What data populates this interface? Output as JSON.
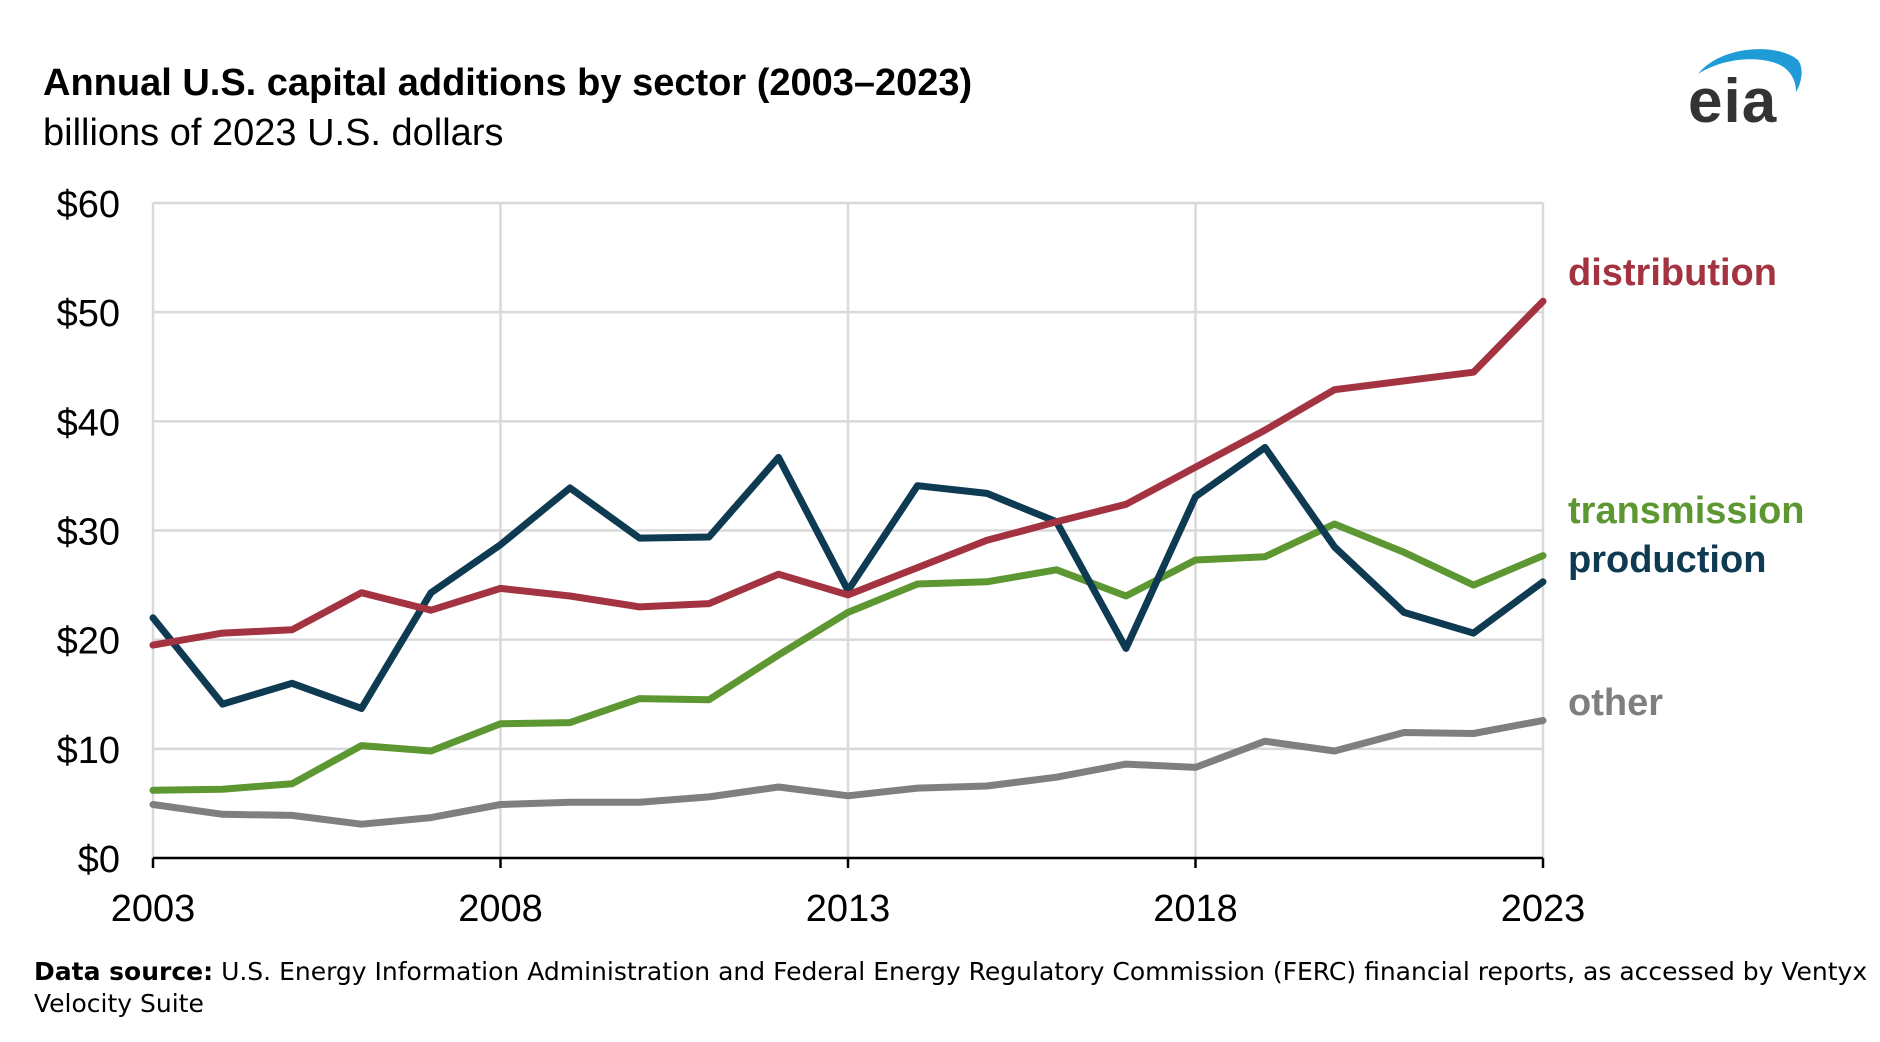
{
  "header": {
    "title": "Annual U.S. capital additions by sector (2003–2023)",
    "subtitle": "billions of 2023 U.S. dollars"
  },
  "logo": {
    "text": "eia",
    "arc_color": "#1f9bd7",
    "text_color": "#333333"
  },
  "footer": {
    "source_label": "Data source:",
    "source_text": "U.S. Energy Information Administration and Federal Energy Regulatory Commission (FERC) financial reports, as accessed by Ventyx Velocity Suite"
  },
  "chart_data": {
    "type": "line",
    "title": "Annual U.S. capital additions by sector (2003–2023)",
    "subtitle": "billions of 2023 U.S. dollars",
    "xlabel": "",
    "ylabel": "",
    "x": [
      2003,
      2004,
      2005,
      2006,
      2007,
      2008,
      2009,
      2010,
      2011,
      2012,
      2013,
      2014,
      2015,
      2016,
      2017,
      2018,
      2019,
      2020,
      2021,
      2022,
      2023
    ],
    "xlim": [
      2003,
      2023
    ],
    "ylim": [
      0,
      60
    ],
    "x_ticks": [
      "2003",
      "2008",
      "2013",
      "2018",
      "2023"
    ],
    "x_tick_values": [
      2003,
      2008,
      2013,
      2018,
      2023
    ],
    "y_ticks": [
      "$0",
      "$10",
      "$20",
      "$30",
      "$40",
      "$50",
      "$60"
    ],
    "y_tick_values": [
      0,
      10,
      20,
      30,
      40,
      50,
      60
    ],
    "grid": true,
    "legend": "direct labels at right end of lines",
    "series": [
      {
        "name": "other",
        "color": "#7f7f7f",
        "values": [
          4.9,
          4.0,
          3.9,
          3.1,
          3.7,
          4.9,
          5.1,
          5.1,
          5.6,
          6.5,
          5.7,
          6.4,
          6.6,
          7.4,
          8.6,
          8.3,
          10.7,
          9.8,
          11.5,
          11.4,
          12.6
        ]
      },
      {
        "name": "transmission",
        "color": "#5d9732",
        "values": [
          6.2,
          6.3,
          6.8,
          10.3,
          9.8,
          12.3,
          12.4,
          14.6,
          14.5,
          18.6,
          22.5,
          25.1,
          25.3,
          26.4,
          24.0,
          27.3,
          27.6,
          30.6,
          28.0,
          25.0,
          27.7
        ]
      },
      {
        "name": "production",
        "color": "#0e3a52",
        "values": [
          22.0,
          14.1,
          16.0,
          13.7,
          24.3,
          28.7,
          33.9,
          29.3,
          29.4,
          36.7,
          24.5,
          34.1,
          33.4,
          30.8,
          19.2,
          33.1,
          37.6,
          28.5,
          22.5,
          20.6,
          25.3
        ]
      },
      {
        "name": "distribution",
        "color": "#a33340",
        "values": [
          19.5,
          20.6,
          20.9,
          24.3,
          22.7,
          24.7,
          24.0,
          23.0,
          23.3,
          26.0,
          24.1,
          26.6,
          29.1,
          30.8,
          32.4,
          35.8,
          39.2,
          42.9,
          43.7,
          44.5,
          51.0
        ]
      }
    ]
  }
}
